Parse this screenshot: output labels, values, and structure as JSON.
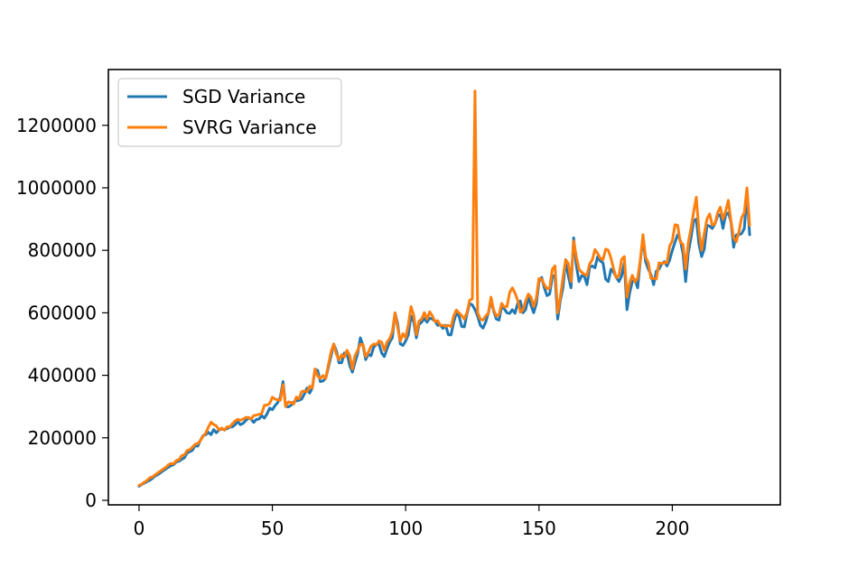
{
  "chart_data": {
    "type": "line",
    "title": "",
    "xlabel": "",
    "ylabel": "",
    "xlim": [
      -11.5,
      240.5
    ],
    "ylim": [
      -14500,
      1378500
    ],
    "x_ticks": [
      0,
      50,
      100,
      150,
      200
    ],
    "y_ticks": [
      0,
      200000,
      400000,
      600000,
      800000,
      1000000,
      1200000
    ],
    "grid": false,
    "legend_position": "top-left",
    "series": [
      {
        "name": "SGD Variance",
        "color": "#1f77b4",
        "anchors": [
          [
            0,
            45000
          ],
          [
            5,
            70000
          ],
          [
            10,
            100000
          ],
          [
            15,
            125000
          ],
          [
            20,
            160000
          ],
          [
            25,
            210000
          ],
          [
            30,
            225000
          ],
          [
            35,
            235000
          ],
          [
            40,
            255000
          ],
          [
            45,
            260000
          ],
          [
            50,
            290000
          ],
          [
            53,
            330000
          ],
          [
            54,
            380000
          ],
          [
            55,
            300000
          ],
          [
            60,
            320000
          ],
          [
            62,
            340000
          ],
          [
            65,
            360000
          ],
          [
            66,
            420000
          ],
          [
            68,
            380000
          ],
          [
            70,
            390000
          ],
          [
            73,
            500000
          ],
          [
            75,
            440000
          ],
          [
            78,
            470000
          ],
          [
            80,
            410000
          ],
          [
            82,
            470000
          ],
          [
            83,
            520000
          ],
          [
            85,
            450000
          ],
          [
            88,
            490000
          ],
          [
            90,
            500000
          ],
          [
            92,
            460000
          ],
          [
            95,
            520000
          ],
          [
            96,
            600000
          ],
          [
            98,
            500000
          ],
          [
            100,
            510000
          ],
          [
            102,
            590000
          ],
          [
            104,
            520000
          ],
          [
            106,
            570000
          ],
          [
            108,
            570000
          ],
          [
            110,
            580000
          ],
          [
            112,
            560000
          ],
          [
            114,
            550000
          ],
          [
            116,
            530000
          ],
          [
            118,
            570000
          ],
          [
            120,
            590000
          ],
          [
            122,
            555000
          ],
          [
            124,
            630000
          ],
          [
            126,
            610000
          ],
          [
            128,
            560000
          ],
          [
            130,
            570000
          ],
          [
            132,
            640000
          ],
          [
            134,
            580000
          ],
          [
            136,
            620000
          ],
          [
            138,
            600000
          ],
          [
            140,
            610000
          ],
          [
            142,
            630000
          ],
          [
            144,
            600000
          ],
          [
            146,
            650000
          ],
          [
            148,
            600000
          ],
          [
            150,
            700000
          ],
          [
            152,
            680000
          ],
          [
            154,
            660000
          ],
          [
            156,
            720000
          ],
          [
            157,
            580000
          ],
          [
            158,
            640000
          ],
          [
            160,
            770000
          ],
          [
            162,
            680000
          ],
          [
            163,
            840000
          ],
          [
            165,
            700000
          ],
          [
            168,
            690000
          ],
          [
            170,
            750000
          ],
          [
            172,
            780000
          ],
          [
            174,
            760000
          ],
          [
            176,
            700000
          ],
          [
            178,
            730000
          ],
          [
            180,
            700000
          ],
          [
            182,
            760000
          ],
          [
            183,
            610000
          ],
          [
            185,
            700000
          ],
          [
            187,
            680000
          ],
          [
            189,
            840000
          ],
          [
            191,
            740000
          ],
          [
            193,
            690000
          ],
          [
            195,
            740000
          ],
          [
            198,
            750000
          ],
          [
            200,
            800000
          ],
          [
            202,
            850000
          ],
          [
            204,
            790000
          ],
          [
            205,
            700000
          ],
          [
            207,
            840000
          ],
          [
            209,
            900000
          ],
          [
            211,
            780000
          ],
          [
            213,
            880000
          ],
          [
            215,
            870000
          ],
          [
            217,
            910000
          ],
          [
            219,
            870000
          ],
          [
            221,
            920000
          ],
          [
            223,
            810000
          ],
          [
            225,
            850000
          ],
          [
            227,
            870000
          ],
          [
            228,
            980000
          ],
          [
            229,
            850000
          ]
        ]
      },
      {
        "name": "SVRG Variance",
        "color": "#ff7f0e",
        "anchors": [
          [
            0,
            48000
          ],
          [
            5,
            75000
          ],
          [
            10,
            105000
          ],
          [
            15,
            130000
          ],
          [
            20,
            170000
          ],
          [
            25,
            215000
          ],
          [
            27,
            250000
          ],
          [
            30,
            225000
          ],
          [
            35,
            245000
          ],
          [
            40,
            265000
          ],
          [
            45,
            275000
          ],
          [
            49,
            310000
          ],
          [
            50,
            330000
          ],
          [
            53,
            320000
          ],
          [
            54,
            370000
          ],
          [
            55,
            300000
          ],
          [
            60,
            325000
          ],
          [
            62,
            350000
          ],
          [
            65,
            360000
          ],
          [
            66,
            420000
          ],
          [
            68,
            390000
          ],
          [
            70,
            390000
          ],
          [
            73,
            500000
          ],
          [
            75,
            450000
          ],
          [
            78,
            480000
          ],
          [
            80,
            420000
          ],
          [
            82,
            480000
          ],
          [
            83,
            500000
          ],
          [
            85,
            460000
          ],
          [
            88,
            500000
          ],
          [
            90,
            510000
          ],
          [
            92,
            480000
          ],
          [
            95,
            540000
          ],
          [
            96,
            600000
          ],
          [
            98,
            510000
          ],
          [
            100,
            520000
          ],
          [
            102,
            620000
          ],
          [
            104,
            530000
          ],
          [
            106,
            580000
          ],
          [
            108,
            580000
          ],
          [
            110,
            590000
          ],
          [
            112,
            575000
          ],
          [
            114,
            560000
          ],
          [
            116,
            560000
          ],
          [
            118,
            590000
          ],
          [
            120,
            600000
          ],
          [
            122,
            580000
          ],
          [
            124,
            640000
          ],
          [
            125,
            645000
          ],
          [
            126,
            1310000
          ],
          [
            127,
            600000
          ],
          [
            128,
            580000
          ],
          [
            130,
            590000
          ],
          [
            132,
            650000
          ],
          [
            134,
            590000
          ],
          [
            136,
            630000
          ],
          [
            138,
            620000
          ],
          [
            140,
            680000
          ],
          [
            142,
            640000
          ],
          [
            144,
            610000
          ],
          [
            146,
            660000
          ],
          [
            148,
            620000
          ],
          [
            150,
            710000
          ],
          [
            152,
            690000
          ],
          [
            154,
            680000
          ],
          [
            156,
            750000
          ],
          [
            157,
            600000
          ],
          [
            158,
            650000
          ],
          [
            160,
            770000
          ],
          [
            162,
            700000
          ],
          [
            163,
            830000
          ],
          [
            165,
            740000
          ],
          [
            168,
            720000
          ],
          [
            170,
            770000
          ],
          [
            172,
            790000
          ],
          [
            174,
            770000
          ],
          [
            176,
            800000
          ],
          [
            178,
            740000
          ],
          [
            180,
            720000
          ],
          [
            182,
            780000
          ],
          [
            183,
            650000
          ],
          [
            185,
            720000
          ],
          [
            187,
            710000
          ],
          [
            189,
            850000
          ],
          [
            191,
            760000
          ],
          [
            193,
            710000
          ],
          [
            195,
            760000
          ],
          [
            198,
            760000
          ],
          [
            200,
            830000
          ],
          [
            202,
            880000
          ],
          [
            204,
            820000
          ],
          [
            205,
            740000
          ],
          [
            207,
            870000
          ],
          [
            209,
            970000
          ],
          [
            211,
            800000
          ],
          [
            213,
            900000
          ],
          [
            215,
            880000
          ],
          [
            217,
            920000
          ],
          [
            219,
            900000
          ],
          [
            221,
            960000
          ],
          [
            223,
            840000
          ],
          [
            225,
            860000
          ],
          [
            227,
            920000
          ],
          [
            228,
            1000000
          ],
          [
            229,
            880000
          ]
        ]
      }
    ]
  }
}
